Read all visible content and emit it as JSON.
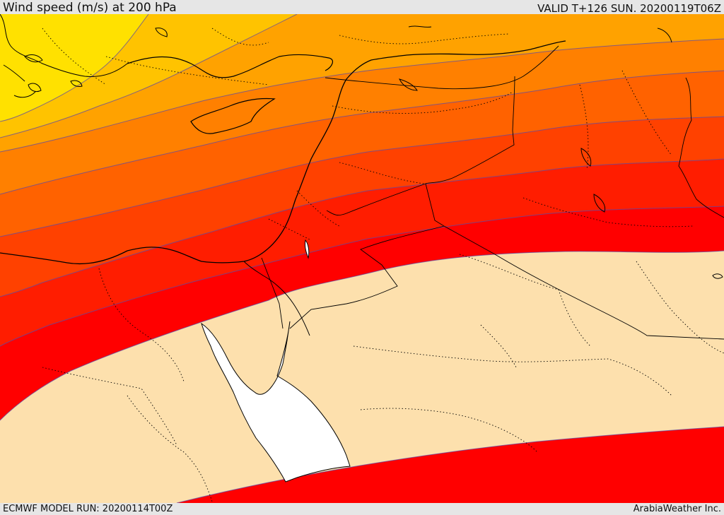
{
  "header": {
    "title": "Wind speed (m/s) at 200 hPa",
    "valid_time": "VALID T+126 SUN. 20200119T06Z"
  },
  "footer": {
    "model_run": "ECMWF MODEL RUN: 20200114T00Z",
    "credit": "ArabiaWeather Inc."
  },
  "map": {
    "variable": "wind speed",
    "units": "m/s",
    "pressure_level_hpa": 200,
    "colors": {
      "band_1": "#ffe100",
      "band_2": "#ffc300",
      "band_3": "#ffa200",
      "band_4": "#ff8000",
      "band_5": "#ff6200",
      "band_6": "#ff4100",
      "band_7": "#ff1d00",
      "band_8": "#ff0000",
      "below_threshold": "#fde0ad",
      "water_masked": "#ffffff",
      "contour_line": "#5d4aa6",
      "coastline": "#000000"
    }
  }
}
